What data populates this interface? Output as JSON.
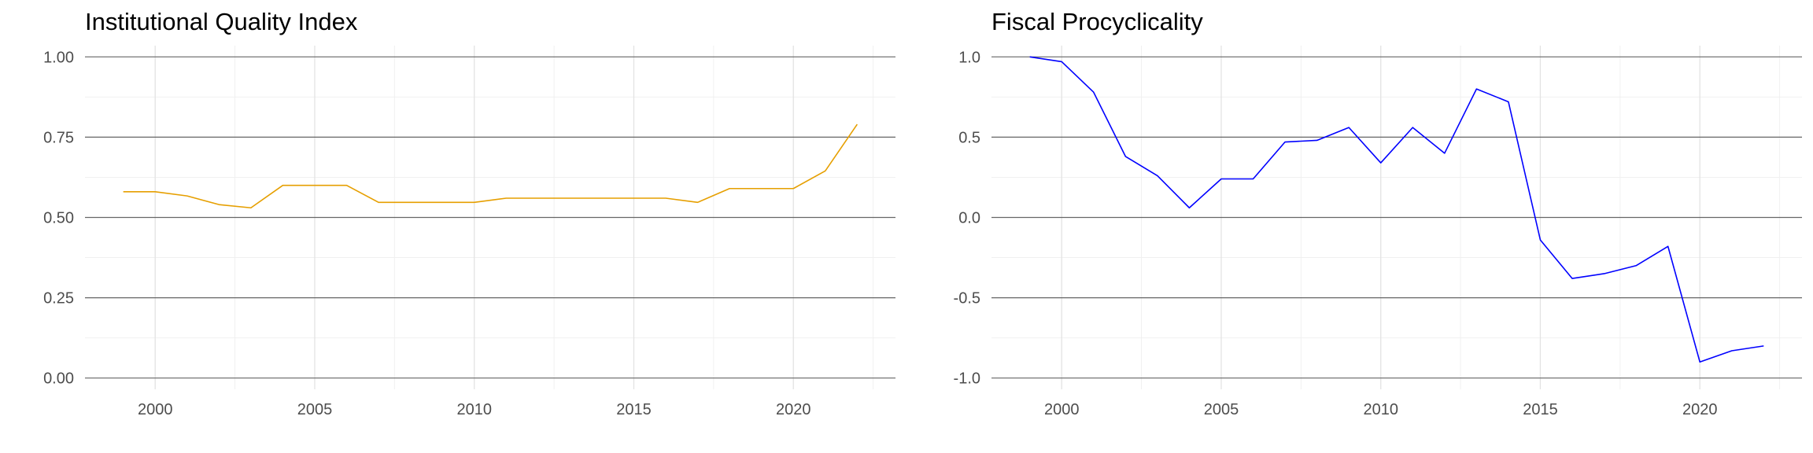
{
  "chart_data": [
    {
      "type": "line",
      "title": "Institutional Quality Index",
      "xlabel": "",
      "ylabel": "",
      "x": [
        1999,
        2000,
        2001,
        2002,
        2003,
        2004,
        2005,
        2006,
        2007,
        2008,
        2009,
        2010,
        2011,
        2012,
        2013,
        2014,
        2015,
        2016,
        2017,
        2018,
        2019,
        2020,
        2021,
        2022
      ],
      "series": [
        {
          "values": [
            0.58,
            0.58,
            0.567,
            0.54,
            0.53,
            0.6,
            0.6,
            0.6,
            0.547,
            0.547,
            0.547,
            0.547,
            0.56,
            0.56,
            0.56,
            0.56,
            0.56,
            0.56,
            0.547,
            0.59,
            0.59,
            0.59,
            0.645,
            0.79
          ],
          "color": "#E69F00"
        }
      ],
      "xlim": [
        1997.8,
        2023.2
      ],
      "ylim": [
        -0.035,
        1.035
      ],
      "xticks": [
        2000,
        2005,
        2010,
        2015,
        2020
      ],
      "xtick_labels": [
        "2000",
        "2005",
        "2010",
        "2015",
        "2020"
      ],
      "yticks": [
        0,
        0.25,
        0.5,
        0.75,
        1
      ],
      "ytick_labels": [
        "0.00",
        "0.25",
        "0.50",
        "0.75",
        "1.00"
      ],
      "grid": true,
      "legend": "none"
    },
    {
      "type": "line",
      "title": "Fiscal Procyclicality",
      "xlabel": "",
      "ylabel": "",
      "x": [
        1999,
        2000,
        2001,
        2002,
        2003,
        2004,
        2005,
        2006,
        2007,
        2008,
        2009,
        2010,
        2011,
        2012,
        2013,
        2014,
        2015,
        2016,
        2017,
        2018,
        2019,
        2020,
        2021,
        2022
      ],
      "series": [
        {
          "values": [
            1.0,
            0.97,
            0.78,
            0.38,
            0.26,
            0.06,
            0.24,
            0.24,
            0.47,
            0.48,
            0.56,
            0.34,
            0.56,
            0.4,
            0.8,
            0.72,
            -0.14,
            -0.38,
            -0.35,
            -0.3,
            -0.18,
            -0.9,
            -0.83,
            -0.8
          ],
          "color": "#0000FF"
        }
      ],
      "xlim": [
        1997.8,
        2023.2
      ],
      "ylim": [
        -1.07,
        1.07
      ],
      "xticks": [
        2000,
        2005,
        2010,
        2015,
        2020
      ],
      "xtick_labels": [
        "2000",
        "2005",
        "2010",
        "2015",
        "2020"
      ],
      "yticks": [
        -1,
        -0.5,
        0,
        0.5,
        1
      ],
      "ytick_labels": [
        "-1.0",
        "-0.5",
        "0.0",
        "0.5",
        "1.0"
      ],
      "grid": true,
      "legend": "none"
    }
  ]
}
